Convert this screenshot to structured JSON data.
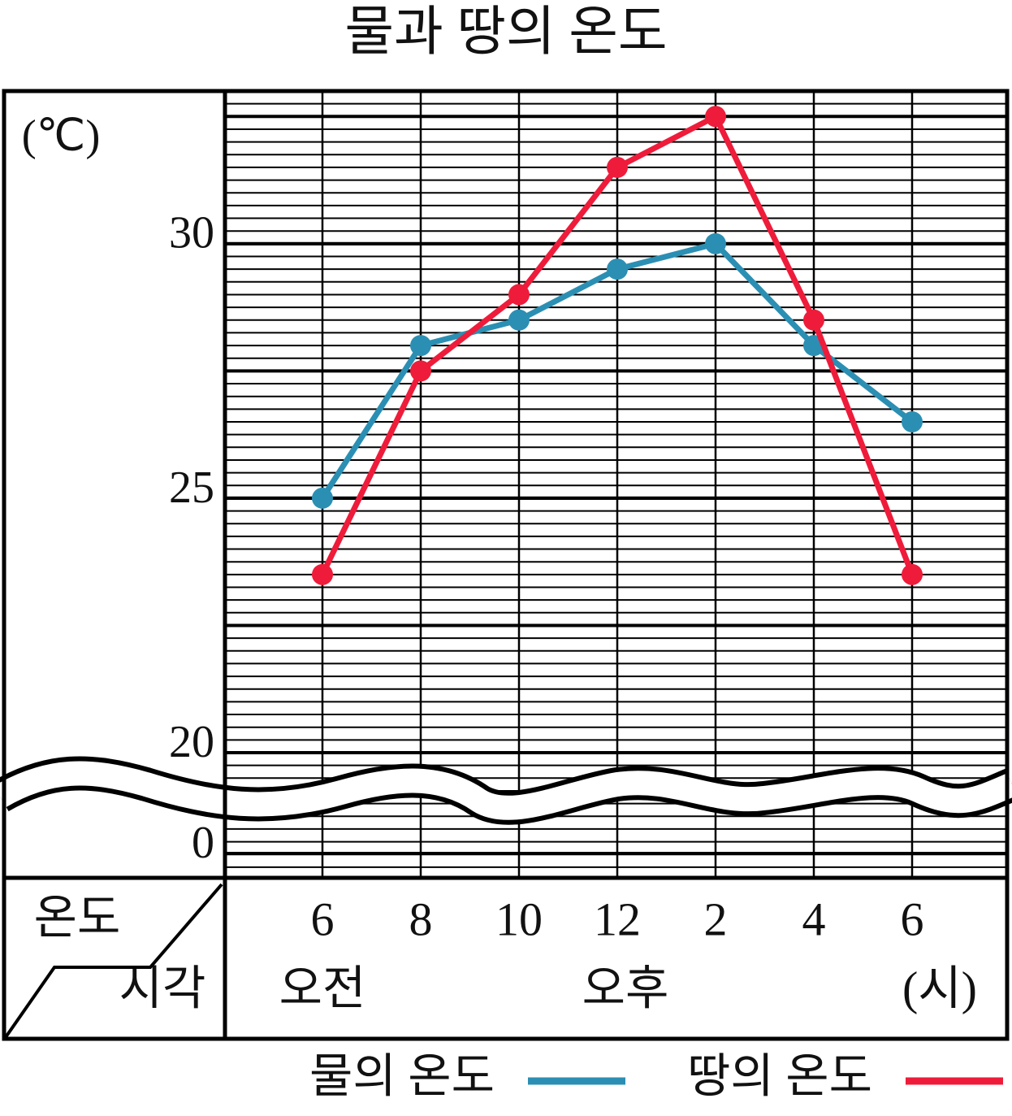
{
  "chart_data": {
    "type": "line",
    "title": "물과 땅의 온도",
    "y_unit": "(℃)",
    "x_header": "시각",
    "y_header": "온도",
    "categories": [
      "6",
      "8",
      "10",
      "12",
      "2",
      "4",
      "6"
    ],
    "period_labels": [
      "오전",
      "오후"
    ],
    "x_unit": "(시)",
    "series": [
      {
        "name": "물의 온도",
        "color": "#2b8fb3",
        "values": [
          25,
          28,
          28.5,
          29.5,
          30,
          28,
          26.5
        ]
      },
      {
        "name": "땅의 온도",
        "color": "#ee1c3a",
        "values": [
          23.5,
          27.5,
          29,
          31.5,
          32.5,
          28.5,
          23.5
        ]
      }
    ],
    "ylim": [
      20,
      33
    ],
    "yticks": [
      0,
      20,
      25,
      30
    ],
    "axis_break": true,
    "grid": true
  }
}
